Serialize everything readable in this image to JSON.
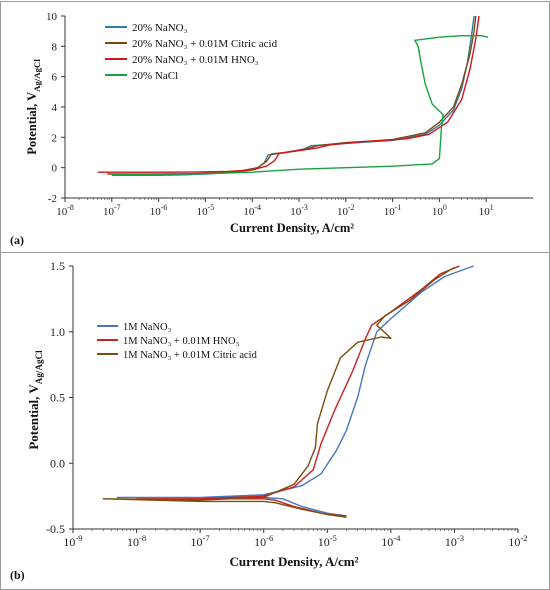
{
  "chart_data": [
    {
      "type": "line",
      "panel_label": "(a)",
      "xlabel": "Current Density, A/cm²",
      "ylabel": "Potential, V",
      "ylabel_sub": "Ag/AgCl",
      "x_scale": "log",
      "xlim": [
        1e-08,
        100
      ],
      "ylim": [
        -2,
        10
      ],
      "x_ticks": [
        1e-08,
        1e-07,
        1e-06,
        1e-05,
        0.0001,
        0.001,
        0.01,
        0.1,
        1,
        10
      ],
      "x_tick_exps": [
        "-8",
        "-7",
        "-6",
        "-5",
        "-4",
        "-3",
        "-2",
        "-1",
        "0",
        "1"
      ],
      "y_ticks": [
        -2,
        0,
        2,
        4,
        6,
        8,
        10
      ],
      "y_tick_labels": [
        "-2",
        "0",
        "2",
        "4",
        "6",
        "8",
        "10"
      ],
      "grid": false,
      "legend_position": "top-left",
      "series": [
        {
          "name": "20% NaNO₃",
          "color": "#2e7ea2",
          "points": [
            [
              1e-07,
              -0.5
            ],
            [
              1e-06,
              -0.5
            ],
            [
              3e-06,
              -0.48
            ],
            [
              1e-05,
              -0.42
            ],
            [
              5e-05,
              -0.3
            ],
            [
              0.00012,
              -0.1
            ],
            [
              0.00018,
              0.3
            ],
            [
              0.00022,
              0.85
            ],
            [
              0.0004,
              0.95
            ],
            [
              0.0012,
              1.2
            ],
            [
              0.0018,
              1.45
            ],
            [
              0.01,
              1.6
            ],
            [
              0.1,
              1.8
            ],
            [
              0.5,
              2.2
            ],
            [
              1,
              2.8
            ],
            [
              2,
              3.8
            ],
            [
              3,
              5.2
            ],
            [
              4,
              7
            ],
            [
              5,
              9
            ],
            [
              5.5,
              10
            ]
          ]
        },
        {
          "name": "20% NaNO₃ + 0.01M Citric acid",
          "color": "#7b4a12",
          "points": [
            [
              8e-08,
              -0.42
            ],
            [
              1e-06,
              -0.42
            ],
            [
              5e-06,
              -0.4
            ],
            [
              2e-05,
              -0.35
            ],
            [
              6e-05,
              -0.2
            ],
            [
              0.00013,
              0.0
            ],
            [
              0.0002,
              0.4
            ],
            [
              0.00026,
              0.9
            ],
            [
              0.0005,
              1.0
            ],
            [
              0.0015,
              1.25
            ],
            [
              0.0025,
              1.45
            ],
            [
              0.01,
              1.65
            ],
            [
              0.1,
              1.85
            ],
            [
              0.5,
              2.3
            ],
            [
              1,
              3.0
            ],
            [
              2,
              4.0
            ],
            [
              3,
              5.5
            ],
            [
              4.5,
              7.5
            ],
            [
              5.5,
              9
            ],
            [
              6,
              10
            ]
          ]
        },
        {
          "name": "20% NaNO₃ + 0.01M HNO₃",
          "color": "#d0171d",
          "points": [
            [
              5e-08,
              -0.3
            ],
            [
              1e-06,
              -0.3
            ],
            [
              5e-06,
              -0.29
            ],
            [
              3e-05,
              -0.25
            ],
            [
              0.0001,
              -0.15
            ],
            [
              0.0002,
              0.1
            ],
            [
              0.0003,
              0.45
            ],
            [
              0.00038,
              0.95
            ],
            [
              0.0007,
              1.05
            ],
            [
              0.0025,
              1.3
            ],
            [
              0.0045,
              1.5
            ],
            [
              0.02,
              1.7
            ],
            [
              0.2,
              1.9
            ],
            [
              0.6,
              2.2
            ],
            [
              1.5,
              3.0
            ],
            [
              3,
              4.5
            ],
            [
              4.5,
              6.5
            ],
            [
              6,
              8.5
            ],
            [
              7,
              10
            ]
          ]
        },
        {
          "name": "20% NaCl",
          "color": "#19a23f",
          "points": [
            [
              1e-07,
              -0.45
            ],
            [
              1e-05,
              -0.4
            ],
            [
              0.0001,
              -0.3
            ],
            [
              0.001,
              -0.1
            ],
            [
              0.01,
              0.0
            ],
            [
              0.1,
              0.1
            ],
            [
              0.7,
              0.25
            ],
            [
              1,
              0.6
            ],
            [
              1.1,
              2.5
            ],
            [
              1.2,
              3.5
            ],
            [
              0.7,
              4.2
            ],
            [
              0.5,
              5.5
            ],
            [
              0.4,
              7
            ],
            [
              0.35,
              8
            ],
            [
              0.3,
              8.4
            ],
            [
              1,
              8.6
            ],
            [
              3,
              8.7
            ],
            [
              8,
              8.7
            ],
            [
              11,
              8.6
            ]
          ]
        }
      ]
    },
    {
      "type": "line",
      "panel_label": "(b)",
      "xlabel": "Current Density, A/cm²",
      "ylabel": "Potential, V",
      "ylabel_sub": "Ag/AgCl",
      "x_scale": "log",
      "xlim": [
        1e-09,
        0.01
      ],
      "ylim": [
        -0.5,
        1.5
      ],
      "x_ticks": [
        1e-09,
        1e-08,
        1e-07,
        1e-06,
        1e-05,
        0.0001,
        0.001,
        0.01
      ],
      "x_tick_exps": [
        "-9",
        "-8",
        "-7",
        "-6",
        "-5",
        "-4",
        "-3",
        "-2"
      ],
      "y_ticks": [
        -0.5,
        0,
        0.5,
        1,
        1.5
      ],
      "y_tick_labels": [
        "-0.5",
        "0.0",
        "0.5",
        "1.0",
        "1.5"
      ],
      "grid": false,
      "legend_position": "center-left",
      "series": [
        {
          "name": "1M NaNO₃",
          "color": "#4a74c4",
          "points": [
            [
              2e-05,
              -0.4
            ],
            [
              1e-05,
              -0.38
            ],
            [
              4e-06,
              -0.33
            ],
            [
              2e-06,
              -0.27
            ],
            [
              1e-06,
              -0.26
            ],
            [
              1e-07,
              -0.26
            ],
            [
              5e-09,
              -0.26
            ],
            [
              1e-07,
              -0.26
            ],
            [
              1e-06,
              -0.24
            ],
            [
              4e-06,
              -0.17
            ],
            [
              8e-06,
              -0.08
            ],
            [
              1.4e-05,
              0.1
            ],
            [
              2e-05,
              0.25
            ],
            [
              3e-05,
              0.5
            ],
            [
              4e-05,
              0.75
            ],
            [
              6e-05,
              1.0
            ],
            [
              0.0001,
              1.1
            ],
            [
              0.0003,
              1.3
            ],
            [
              0.0007,
              1.42
            ],
            [
              0.002,
              1.5
            ]
          ]
        },
        {
          "name": "1M NaNO₃ + 0.01M HNO₃",
          "color": "#cc2020",
          "points": [
            [
              2e-05,
              -0.4
            ],
            [
              1e-05,
              -0.39
            ],
            [
              3e-06,
              -0.33
            ],
            [
              1.5e-06,
              -0.28
            ],
            [
              1e-06,
              -0.27
            ],
            [
              1e-07,
              -0.27
            ],
            [
              1e-08,
              -0.27
            ],
            [
              1e-07,
              -0.27
            ],
            [
              1e-06,
              -0.25
            ],
            [
              3e-06,
              -0.18
            ],
            [
              6e-06,
              -0.05
            ],
            [
              8e-06,
              0.15
            ],
            [
              1.3e-05,
              0.4
            ],
            [
              2.5e-05,
              0.7
            ],
            [
              4e-05,
              0.95
            ],
            [
              5e-05,
              1.05
            ],
            [
              0.0001,
              1.15
            ],
            [
              0.0003,
              1.32
            ],
            [
              0.0006,
              1.44
            ],
            [
              0.0012,
              1.5
            ]
          ]
        },
        {
          "name": "1M NaNO₃ + 0.01M Citric acid",
          "color": "#7a4e0e",
          "points": [
            [
              2e-05,
              -0.41
            ],
            [
              1e-05,
              -0.39
            ],
            [
              4e-06,
              -0.35
            ],
            [
              1.5e-06,
              -0.3
            ],
            [
              1e-06,
              -0.29
            ],
            [
              1e-07,
              -0.29
            ],
            [
              3e-09,
              -0.27
            ],
            [
              1e-07,
              -0.28
            ],
            [
              1e-06,
              -0.26
            ],
            [
              3e-06,
              -0.16
            ],
            [
              5e-06,
              -0.02
            ],
            [
              6.5e-06,
              0.12
            ],
            [
              7e-06,
              0.3
            ],
            [
              1e-05,
              0.55
            ],
            [
              1.6e-05,
              0.8
            ],
            [
              3e-05,
              0.92
            ],
            [
              7e-05,
              0.96
            ],
            [
              0.0001,
              0.95
            ],
            [
              6e-05,
              1.05
            ],
            [
              8e-05,
              1.12
            ],
            [
              0.0002,
              1.24
            ],
            [
              0.0005,
              1.4
            ],
            [
              0.001,
              1.49
            ]
          ]
        }
      ]
    }
  ]
}
